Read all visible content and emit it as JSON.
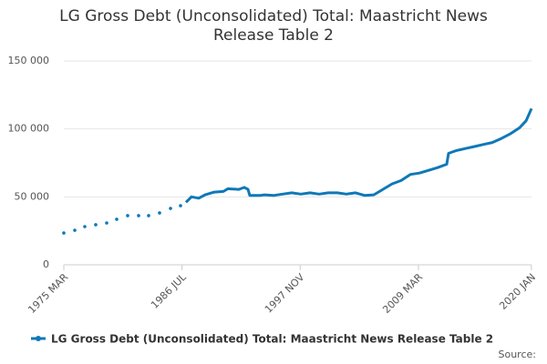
{
  "chart_data": {
    "type": "line",
    "title": "LG Gross Debt (Unconsolidated) Total: Maastricht News Release Table 2",
    "source": "Source:",
    "x": [
      1975.17,
      1975.7,
      1976.22,
      1976.7,
      1977.18,
      1977.7,
      1978.23,
      1978.75,
      1979.28,
      1979.76,
      1980.24,
      1980.76,
      1981.29,
      1981.8,
      1982.34,
      1982.8,
      1983.3,
      1983.8,
      1984.35,
      1984.9,
      1985.4,
      1985.9,
      1986.36,
      1986.6,
      1986.88,
      1987.41,
      1988.11,
      1988.72,
      1989.59,
      1990.47,
      1990.9,
      1991.95,
      1992.48,
      1992.83,
      1993.0,
      1993.96,
      1994.4,
      1995.27,
      1996.15,
      1997.02,
      1997.9,
      1998.77,
      1999.65,
      2000.52,
      2001.39,
      2002.27,
      2003.14,
      2004.02,
      2004.89,
      2005.76,
      2006.64,
      2007.51,
      2008.39,
      2009.26,
      2010.14,
      2011.01,
      2011.88,
      2012.06,
      2012.76,
      2013.63,
      2014.5,
      2015.38,
      2016.25,
      2017.13,
      2018.0,
      2018.88,
      2019.49,
      2020.01
    ],
    "series": [
      {
        "name": "LG Gross Debt (Unconsolidated) Total: Maastricht News Release Table 2",
        "color": "#0f78b8",
        "values": [
          23400,
          null,
          25400,
          null,
          28100,
          null,
          29500,
          null,
          30800,
          null,
          33500,
          null,
          36200,
          null,
          36200,
          null,
          36200,
          null,
          38200,
          null,
          41500,
          null,
          43500,
          null,
          46000,
          50000,
          49000,
          51500,
          53500,
          54000,
          56000,
          55500,
          57000,
          55500,
          51000,
          51000,
          51500,
          51000,
          52000,
          53000,
          52000,
          53000,
          52000,
          53000,
          53000,
          52000,
          53000,
          51000,
          51500,
          55500,
          59500,
          62000,
          66500,
          67500,
          69500,
          71500,
          74000,
          82000,
          84000,
          85500,
          87000,
          88500,
          90000,
          93000,
          96500,
          101000,
          106000,
          115000
        ]
      }
    ],
    "xlim": [
      1975.17,
      2020.01
    ],
    "xticks": [
      {
        "value": 1975.17,
        "label": "1975 MAR"
      },
      {
        "value": 1986.5,
        "label": "1986 JUL"
      },
      {
        "value": 1997.83,
        "label": "1997 NOV"
      },
      {
        "value": 2009.17,
        "label": "2009 MAR"
      },
      {
        "value": 2020.0,
        "label": "2020 JAN"
      }
    ],
    "ylim": [
      0,
      150000
    ],
    "yticks": [
      0,
      {
        "value": 50000,
        "label": "50 000"
      },
      {
        "value": 100000,
        "label": "100 000"
      },
      {
        "value": 150000,
        "label": "150 000"
      }
    ],
    "grid": true
  }
}
